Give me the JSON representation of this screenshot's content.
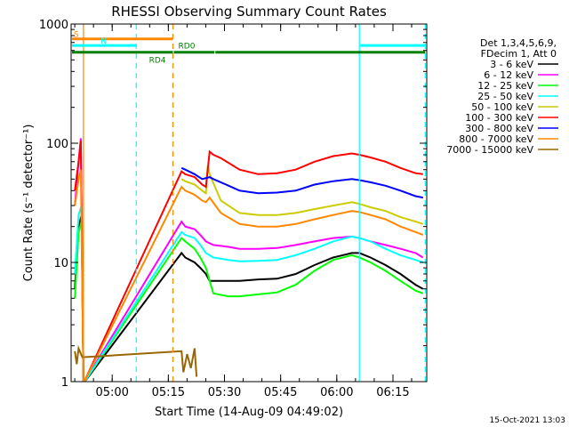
{
  "chart_data": {
    "type": "line",
    "title": "RHESSI Observing Summary Count Rates",
    "xlabel": "Start Time (14-Aug-09 04:49:02)",
    "ylabel": "Count Rate (s⁻¹ detector⁻¹)",
    "yscale": "log",
    "ylim": [
      1,
      1000
    ],
    "xlim_minutes": [
      0,
      95
    ],
    "y_ticks": [
      {
        "value": 1,
        "label": "1"
      },
      {
        "value": 10,
        "label": "10"
      },
      {
        "value": 100,
        "label": "100"
      },
      {
        "value": 1000,
        "label": "1000"
      }
    ],
    "x_ticks": [
      {
        "minute": 10.97,
        "label": "05:00"
      },
      {
        "minute": 25.97,
        "label": "05:15"
      },
      {
        "minute": 40.97,
        "label": "05:30"
      },
      {
        "minute": 55.97,
        "label": "05:45"
      },
      {
        "minute": 70.97,
        "label": "06:00"
      },
      {
        "minute": 85.97,
        "label": "06:15"
      }
    ],
    "legend_header": [
      "Det 1,3,4,5,6,9,",
      "FDecim 1, Att 0"
    ],
    "series": [
      {
        "name": "3 - 6 keV",
        "color": "#000000",
        "points": [
          [
            1,
            6
          ],
          [
            2,
            20
          ],
          [
            2.8,
            25
          ],
          [
            3.3,
            0
          ],
          [
            29.5,
            12
          ],
          [
            30.5,
            11
          ],
          [
            33,
            10
          ],
          [
            34.5,
            9
          ],
          [
            36,
            8
          ],
          [
            37,
            7
          ],
          [
            40,
            7
          ],
          [
            45,
            7
          ],
          [
            50,
            7.2
          ],
          [
            55,
            7.3
          ],
          [
            60,
            8
          ],
          [
            65,
            9.5
          ],
          [
            70,
            11
          ],
          [
            75,
            12
          ],
          [
            77,
            12
          ],
          [
            80,
            11
          ],
          [
            84,
            9.5
          ],
          [
            88,
            8
          ],
          [
            92,
            6.5
          ],
          [
            94,
            6
          ]
        ]
      },
      {
        "name": "6 - 12 keV",
        "color": "#ff00ff",
        "points": [
          [
            1,
            30
          ],
          [
            2,
            70
          ],
          [
            2.6,
            110
          ],
          [
            3.3,
            0
          ],
          [
            29.5,
            22
          ],
          [
            30.5,
            20
          ],
          [
            33,
            19
          ],
          [
            34.5,
            17
          ],
          [
            36,
            15
          ],
          [
            38,
            14
          ],
          [
            42,
            13.5
          ],
          [
            45,
            13
          ],
          [
            50,
            13
          ],
          [
            55,
            13.2
          ],
          [
            60,
            14
          ],
          [
            65,
            15
          ],
          [
            70,
            16
          ],
          [
            75,
            16.5
          ],
          [
            77,
            16
          ],
          [
            80,
            15
          ],
          [
            84,
            14
          ],
          [
            88,
            13
          ],
          [
            92,
            12
          ],
          [
            94,
            11
          ]
        ]
      },
      {
        "name": "12 - 25 keV",
        "color": "#00ff00",
        "points": [
          [
            1,
            5
          ],
          [
            2,
            18
          ],
          [
            2.8,
            22
          ],
          [
            3.3,
            0
          ],
          [
            29.5,
            16
          ],
          [
            30.5,
            15
          ],
          [
            33,
            13
          ],
          [
            34.5,
            11
          ],
          [
            36,
            9
          ],
          [
            37,
            7
          ],
          [
            38,
            5.5
          ],
          [
            42,
            5.2
          ],
          [
            45,
            5.2
          ],
          [
            50,
            5.4
          ],
          [
            55,
            5.6
          ],
          [
            60,
            6.5
          ],
          [
            65,
            8.5
          ],
          [
            70,
            10.5
          ],
          [
            75,
            11.5
          ],
          [
            77,
            11
          ],
          [
            80,
            10
          ],
          [
            84,
            8.5
          ],
          [
            88,
            7
          ],
          [
            92,
            5.8
          ],
          [
            94,
            5.5
          ]
        ]
      },
      {
        "name": "25 - 50 keV",
        "color": "#00ffff",
        "points": [
          [
            1,
            8
          ],
          [
            2,
            25
          ],
          [
            2.8,
            30
          ],
          [
            3.3,
            0
          ],
          [
            29.5,
            18
          ],
          [
            30.5,
            17
          ],
          [
            33,
            16
          ],
          [
            34.5,
            14
          ],
          [
            36,
            12
          ],
          [
            38,
            11
          ],
          [
            42,
            10.5
          ],
          [
            45,
            10.2
          ],
          [
            50,
            10.3
          ],
          [
            55,
            10.5
          ],
          [
            60,
            11.5
          ],
          [
            65,
            13
          ],
          [
            70,
            15
          ],
          [
            75,
            16.5
          ],
          [
            77,
            16
          ],
          [
            80,
            15
          ],
          [
            84,
            13
          ],
          [
            88,
            11.5
          ],
          [
            92,
            10.5
          ],
          [
            94,
            10
          ]
        ]
      },
      {
        "name": "50 - 100 keV",
        "color": "#cccc00",
        "points": [
          [
            29.5,
            50
          ],
          [
            30.5,
            48
          ],
          [
            33,
            45
          ],
          [
            35,
            40
          ],
          [
            36,
            38
          ],
          [
            36.5,
            65
          ],
          [
            37,
            55
          ],
          [
            40,
            33
          ],
          [
            45,
            26
          ],
          [
            50,
            25
          ],
          [
            55,
            25
          ],
          [
            60,
            26
          ],
          [
            65,
            28
          ],
          [
            70,
            30
          ],
          [
            75,
            32
          ],
          [
            77,
            31
          ],
          [
            80,
            29
          ],
          [
            84,
            27
          ],
          [
            88,
            24
          ],
          [
            92,
            22
          ],
          [
            94,
            21
          ]
        ]
      },
      {
        "name": "100 - 300 keV",
        "color": "#ff0000",
        "points": [
          [
            1,
            40
          ],
          [
            2,
            70
          ],
          [
            2.6,
            105
          ],
          [
            3.3,
            0
          ],
          [
            29.5,
            58
          ],
          [
            30.5,
            55
          ],
          [
            33,
            52
          ],
          [
            35,
            45
          ],
          [
            36,
            43
          ],
          [
            37,
            85
          ],
          [
            38,
            80
          ],
          [
            40,
            75
          ],
          [
            45,
            60
          ],
          [
            50,
            55
          ],
          [
            55,
            56
          ],
          [
            60,
            60
          ],
          [
            65,
            70
          ],
          [
            70,
            78
          ],
          [
            75,
            82
          ],
          [
            77,
            80
          ],
          [
            80,
            76
          ],
          [
            84,
            70
          ],
          [
            88,
            62
          ],
          [
            92,
            56
          ],
          [
            94,
            55
          ]
        ]
      },
      {
        "name": "300 - 800 keV",
        "color": "#0000ff",
        "points": [
          [
            29.5,
            62
          ],
          [
            30.5,
            60
          ],
          [
            33,
            55
          ],
          [
            35,
            50
          ],
          [
            37,
            52
          ],
          [
            38,
            50
          ],
          [
            40,
            47
          ],
          [
            45,
            40
          ],
          [
            50,
            38
          ],
          [
            55,
            38.5
          ],
          [
            60,
            40
          ],
          [
            65,
            45
          ],
          [
            70,
            48
          ],
          [
            75,
            50
          ],
          [
            77,
            49
          ],
          [
            80,
            47
          ],
          [
            84,
            44
          ],
          [
            88,
            40
          ],
          [
            92,
            36
          ],
          [
            94,
            35
          ]
        ]
      },
      {
        "name": "800 - 7000 keV",
        "color": "#ff8800",
        "points": [
          [
            1,
            30
          ],
          [
            2,
            50
          ],
          [
            2.6,
            60
          ],
          [
            3.3,
            0
          ],
          [
            29.5,
            43
          ],
          [
            30.5,
            40
          ],
          [
            33,
            37
          ],
          [
            35,
            33
          ],
          [
            36,
            32
          ],
          [
            37,
            35
          ],
          [
            40,
            26
          ],
          [
            45,
            21
          ],
          [
            50,
            20
          ],
          [
            55,
            20
          ],
          [
            60,
            21
          ],
          [
            65,
            23
          ],
          [
            70,
            25
          ],
          [
            75,
            27
          ],
          [
            77,
            26.5
          ],
          [
            80,
            25
          ],
          [
            84,
            23
          ],
          [
            88,
            20
          ],
          [
            92,
            18
          ],
          [
            94,
            17
          ]
        ]
      },
      {
        "name": "7000 - 15000 keV",
        "color": "#996600",
        "points": [
          [
            1,
            1.8
          ],
          [
            1.5,
            1.4
          ],
          [
            2,
            1.9
          ],
          [
            3,
            1.6
          ],
          [
            29.5,
            1.8
          ],
          [
            30,
            1.2
          ],
          [
            31,
            1.7
          ],
          [
            32,
            1.3
          ],
          [
            33,
            1.9
          ],
          [
            33.5,
            1.1
          ]
        ]
      }
    ],
    "flag_bars": [
      {
        "label": "S",
        "color": "#ff8800",
        "y_value": 750,
        "start": 0,
        "end": 27.2
      },
      {
        "label": "N",
        "color": "#00ffff",
        "y_value": 660,
        "start": 0,
        "end": 17.4
      },
      {
        "label": "",
        "color": "#00ffff",
        "y_value": 660,
        "start": 77,
        "end": 94.6
      },
      {
        "label": "RD4",
        "color": "#008000",
        "y_value": 580,
        "start": 0,
        "end": 27.2
      },
      {
        "label": "RD0",
        "color": "#008000",
        "y_value": 580,
        "start": 27.2,
        "end": 38.3
      },
      {
        "label": "",
        "color": "#008000",
        "y_value": 580,
        "start": 38.3,
        "end": 94.6
      }
    ],
    "vertical_markers": [
      {
        "minute": 3.3,
        "color": "#ff8800",
        "style": "solid"
      },
      {
        "minute": 17.4,
        "color": "#00ffff",
        "style": "dashed"
      },
      {
        "minute": 27.2,
        "color": "#ff8800",
        "style": "dashed"
      },
      {
        "minute": 77.0,
        "color": "#00ffff",
        "style": "solid"
      },
      {
        "minute": 94.6,
        "color": "#00ffff",
        "style": "dashed"
      }
    ],
    "footer_date": "15-Oct-2021 13:03"
  }
}
